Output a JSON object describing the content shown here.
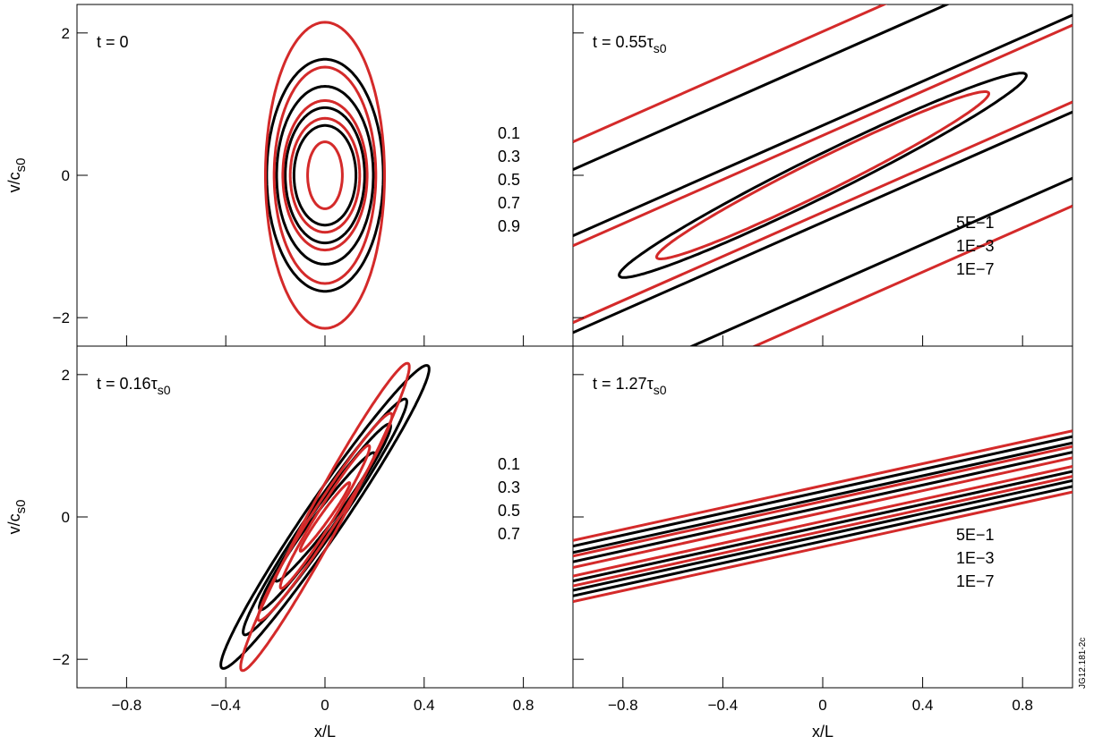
{
  "figure_id": "JG12.181-2c",
  "chart_data": [
    {
      "type": "line",
      "panel": "top-left",
      "label": "t = 0",
      "time_text": {
        "prefix": "t = 0",
        "tau": "",
        "sub": ""
      },
      "xlim": [
        -1,
        1
      ],
      "ylim": [
        -2.4,
        2.4
      ],
      "xlabel": "",
      "ylabel": {
        "main": "v/c",
        "sub": "s0"
      },
      "xticks": [
        -0.8,
        -0.4,
        0,
        0.4,
        0.8
      ],
      "yticks": [
        -2,
        0,
        2
      ],
      "show_xtick_labels": false,
      "show_ytick_labels": true,
      "contour_levels": [
        "0.1",
        "0.3",
        "0.5",
        "0.7",
        "0.9"
      ],
      "series": [
        {
          "color": "#000000",
          "contours": [
            {
              "kind": "ellipse",
              "cx": 0,
              "cy": 0,
              "a": 0.235,
              "b": 1.63,
              "theta": 0
            },
            {
              "kind": "ellipse",
              "cx": 0,
              "cy": 0,
              "a": 0.195,
              "b": 1.25,
              "theta": 0
            },
            {
              "kind": "ellipse",
              "cx": 0,
              "cy": 0,
              "a": 0.16,
              "b": 0.95,
              "theta": 0
            },
            {
              "kind": "ellipse",
              "cx": 0,
              "cy": 0,
              "a": 0.125,
              "b": 0.7,
              "theta": 0
            }
          ]
        },
        {
          "color": "#d42a2a",
          "contours": [
            {
              "kind": "ellipse",
              "cx": 0,
              "cy": 0,
              "a": 0.24,
              "b": 2.15,
              "theta": 0
            },
            {
              "kind": "ellipse",
              "cx": 0,
              "cy": 0,
              "a": 0.205,
              "b": 1.52,
              "theta": 0
            },
            {
              "kind": "ellipse",
              "cx": 0,
              "cy": 0,
              "a": 0.17,
              "b": 1.05,
              "theta": 0
            },
            {
              "kind": "ellipse",
              "cx": 0,
              "cy": 0,
              "a": 0.14,
              "b": 0.8,
              "theta": 0
            },
            {
              "kind": "ellipse",
              "cx": 0,
              "cy": 0,
              "a": 0.07,
              "b": 0.47,
              "theta": 0
            }
          ]
        }
      ]
    },
    {
      "type": "line",
      "panel": "top-right",
      "label": "t = 0.55τs0",
      "time_text": {
        "prefix": "t = 0.55",
        "tau": "τ",
        "sub": "s0"
      },
      "xlim": [
        -1,
        1
      ],
      "ylim": [
        -2.4,
        2.4
      ],
      "xlabel": "",
      "ylabel": {
        "main": "",
        "sub": ""
      },
      "xticks": [
        -0.8,
        -0.4,
        0,
        0.4,
        0.8
      ],
      "yticks": [
        -2,
        0,
        2
      ],
      "show_xtick_labels": false,
      "show_ytick_labels": false,
      "contour_levels": [
        "5E−1",
        "1E−3",
        "1E−7"
      ],
      "series": [
        {
          "color": "#000000",
          "contours": [
            {
              "kind": "ellipse",
              "cx": 0,
              "cy": 0,
              "a": 0.815,
              "b": 1.43,
              "theta": 0.55
            },
            {
              "kind": "band",
              "slope": 1.55,
              "offsets": [
                0.7,
                1.63,
                -0.66,
                -1.59
              ]
            }
          ]
        },
        {
          "color": "#d42a2a",
          "contours": [
            {
              "kind": "ellipse",
              "cx": 0,
              "cy": 0,
              "a": 0.665,
              "b": 1.17,
              "theta": 0.55
            },
            {
              "kind": "band",
              "slope": 1.55,
              "offsets": [
                0.56,
                2.02,
                -0.52,
                -1.98
              ]
            }
          ]
        }
      ]
    },
    {
      "type": "line",
      "panel": "bottom-left",
      "label": "t = 0.16τs0",
      "time_text": {
        "prefix": "t = 0.16",
        "tau": "τ",
        "sub": "s0"
      },
      "xlim": [
        -1,
        1
      ],
      "ylim": [
        -2.4,
        2.4
      ],
      "xlabel": "x/L",
      "ylabel": {
        "main": "v/c",
        "sub": "s0"
      },
      "xticks": [
        -0.8,
        -0.4,
        0,
        0.4,
        0.8
      ],
      "yticks": [
        -2,
        0,
        2
      ],
      "show_xtick_labels": true,
      "show_ytick_labels": true,
      "contour_levels": [
        "0.1",
        "0.3",
        "0.5",
        "0.7"
      ],
      "series": [
        {
          "color": "#000000",
          "contours": [
            {
              "kind": "ellipse",
              "cx": 0,
              "cy": 0,
              "a": 0.42,
              "b": 2.12,
              "theta": 0.16
            },
            {
              "kind": "ellipse",
              "cx": 0,
              "cy": 0,
              "a": 0.33,
              "b": 1.65,
              "theta": 0.16
            },
            {
              "kind": "ellipse",
              "cx": 0,
              "cy": 0,
              "a": 0.265,
              "b": 1.3,
              "theta": 0.16
            },
            {
              "kind": "ellipse",
              "cx": 0,
              "cy": 0,
              "a": 0.2,
              "b": 0.9,
              "theta": 0.16
            }
          ]
        },
        {
          "color": "#d42a2a",
          "contours": [
            {
              "kind": "ellipse",
              "cx": 0,
              "cy": 0,
              "a": 0.34,
              "b": 2.15,
              "theta": 0.16
            },
            {
              "kind": "ellipse",
              "cx": 0,
              "cy": 0,
              "a": 0.27,
              "b": 1.45,
              "theta": 0.16
            },
            {
              "kind": "ellipse",
              "cx": 0,
              "cy": 0,
              "a": 0.18,
              "b": 1.0,
              "theta": 0.16
            },
            {
              "kind": "ellipse",
              "cx": 0,
              "cy": 0,
              "a": 0.1,
              "b": 0.48,
              "theta": 0.16
            }
          ]
        }
      ]
    },
    {
      "type": "line",
      "panel": "bottom-right",
      "label": "t = 1.27τs0",
      "time_text": {
        "prefix": "t = 1.27",
        "tau": "τ",
        "sub": "s0"
      },
      "xlim": [
        -1,
        1
      ],
      "ylim": [
        -2.4,
        2.4
      ],
      "xlabel": "x/L",
      "ylabel": {
        "main": "",
        "sub": ""
      },
      "xticks": [
        -0.8,
        -0.4,
        0,
        0.4,
        0.8
      ],
      "yticks": [
        -2,
        0,
        2
      ],
      "show_xtick_labels": true,
      "show_ytick_labels": false,
      "contour_levels": [
        "5E−1",
        "1E−3",
        "1E−7"
      ],
      "series": [
        {
          "color": "#000000",
          "contours": [
            {
              "kind": "band",
              "slope": 0.77,
              "offsets": [
                0.36,
                0.27,
                0.14,
                -0.13,
                -0.26,
                -0.34
              ]
            }
          ]
        },
        {
          "color": "#d42a2a",
          "contours": [
            {
              "kind": "band",
              "slope": 0.77,
              "offsets": [
                0.44,
                0.22,
                0.06,
                -0.06,
                -0.2,
                -0.42
              ]
            }
          ]
        }
      ]
    }
  ]
}
